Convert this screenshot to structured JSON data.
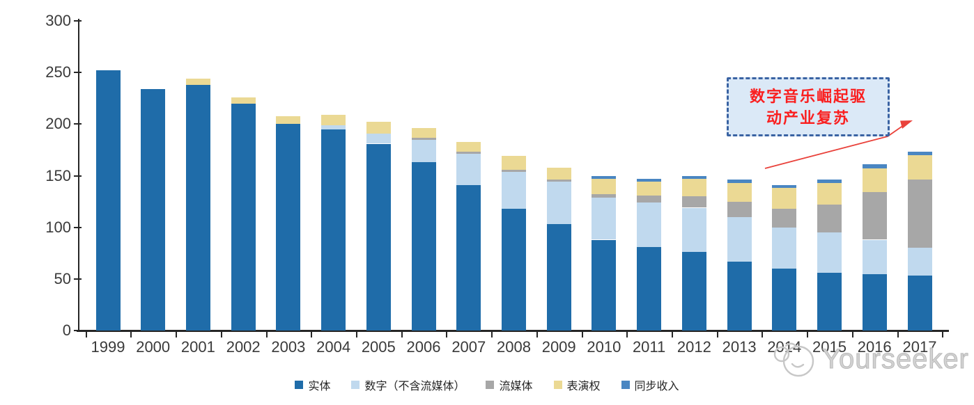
{
  "chart_data": {
    "type": "bar",
    "stacked": true,
    "title": "",
    "xlabel": "",
    "ylabel": "",
    "categories": [
      "1999",
      "2000",
      "2001",
      "2002",
      "2003",
      "2004",
      "2005",
      "2006",
      "2007",
      "2008",
      "2009",
      "2010",
      "2011",
      "2012",
      "2013",
      "2014",
      "2015",
      "2016",
      "2017"
    ],
    "series": [
      {
        "name": "实体",
        "color": "#1F6CA9",
        "values": [
          252,
          234,
          238,
          220,
          200,
          195,
          181,
          163,
          141,
          118,
          103,
          88,
          81,
          76,
          67,
          60,
          56,
          55,
          53
        ]
      },
      {
        "name": "数字（不含流媒体）",
        "color": "#C0D9EE",
        "values": [
          0,
          0,
          0,
          0,
          0,
          4,
          10,
          22,
          30,
          36,
          41,
          41,
          43,
          43,
          43,
          40,
          39,
          33,
          27
        ]
      },
      {
        "name": "流媒体",
        "color": "#A7A7A7",
        "values": [
          0,
          0,
          0,
          0,
          0,
          0,
          0,
          2,
          2,
          2,
          2,
          3,
          7,
          11,
          15,
          18,
          27,
          46,
          66
        ]
      },
      {
        "name": "表演权",
        "color": "#EBD994",
        "values": [
          0,
          0,
          6,
          6,
          8,
          10,
          11,
          9,
          10,
          13,
          12,
          15,
          13,
          17,
          18,
          20,
          21,
          23,
          24
        ]
      },
      {
        "name": "同步收入",
        "color": "#4A86C2",
        "values": [
          0,
          0,
          0,
          0,
          0,
          0,
          0,
          0,
          0,
          0,
          0,
          3,
          3,
          3,
          3,
          3,
          3,
          4,
          3
        ]
      }
    ],
    "ylim": [
      0,
      300
    ],
    "yticks": [
      0,
      50,
      100,
      150,
      200,
      250,
      300
    ],
    "grid": false,
    "legend_position": "bottom"
  },
  "annotation": {
    "line1": "数字音乐崛起驱",
    "line2": "动产业复苏",
    "full_text": "数字音乐崛起驱动产业复苏",
    "text_color": "#FA1F1F",
    "box_bg_color": "#DBE9F7",
    "box_border_color": "#3A63A3",
    "arrow_color": "#E9423B"
  },
  "watermark": {
    "text": "Yourseeker",
    "color": "#C9C9C9"
  },
  "axis": {
    "line_color": "#262626",
    "text_color": "#3A3A3A"
  }
}
